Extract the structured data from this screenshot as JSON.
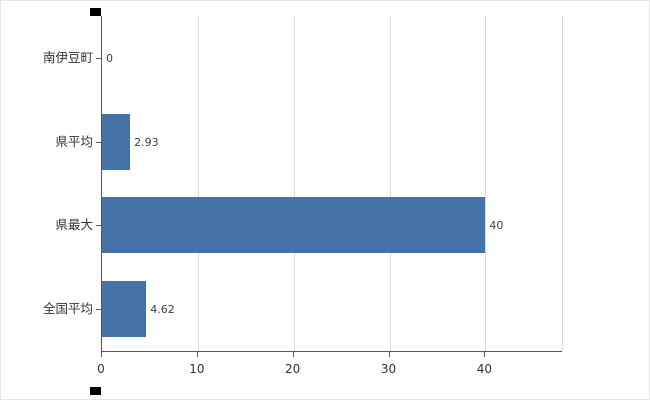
{
  "chart_data": {
    "type": "bar",
    "orientation": "horizontal",
    "title": "",
    "xlabel": "",
    "ylabel": "",
    "categories": [
      "南伊豆町",
      "県平均",
      "県最大",
      "全国平均"
    ],
    "values": [
      0,
      2.93,
      40,
      4.62
    ],
    "value_labels": [
      "0",
      "2.93",
      "40",
      "4.62"
    ],
    "xlim": [
      0,
      48
    ],
    "x_ticks": [
      0,
      10,
      20,
      30,
      40
    ],
    "x_tick_labels": [
      "0",
      "10",
      "20",
      "30",
      "40"
    ],
    "grid": true,
    "legend": "none",
    "bar_color": "#4573a7",
    "gridline_color": "#d9d9d9",
    "axis_color": "#595959",
    "text_color": "#333333"
  }
}
